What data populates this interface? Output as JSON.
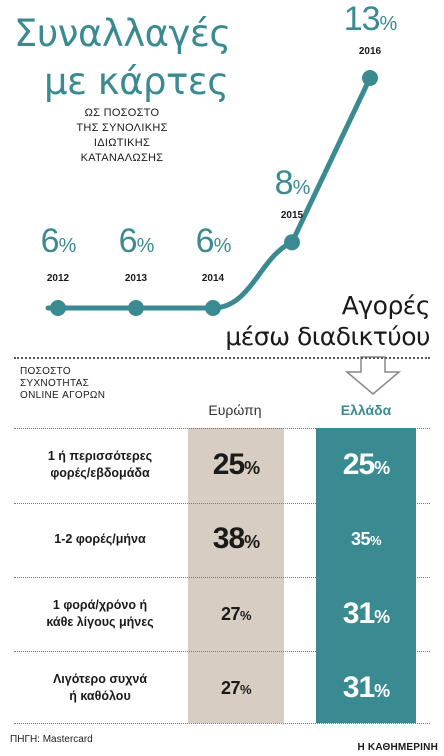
{
  "title": {
    "line1": "Συναλλαγές",
    "line2": "με κάρτες"
  },
  "subtitle": {
    "line1": "ΩΣ ΠΟΣΟΣΤΟ",
    "line2": "ΤΗΣ ΣΥΝΟΛΙΚΗΣ",
    "line3": "ΙΔΙΩΤΙΚΗΣ",
    "line4": "ΚΑΤΑΝΑΛΩΣΗΣ"
  },
  "chart_data": [
    {
      "type": "line",
      "title": "Συναλλαγές με κάρτες",
      "subtitle": "ΩΣ ΠΟΣΟΣΤΟ ΤΗΣ ΣΥΝΟΛΙΚΗΣ ΙΔΙΩΤΙΚΗΣ ΚΑΤΑΝΑΛΩΣΗΣ",
      "x": [
        "2012",
        "2013",
        "2014",
        "2015",
        "2016"
      ],
      "values": [
        6,
        6,
        6,
        8,
        13
      ],
      "unit": "%",
      "line_color": "#3a8a92",
      "grid": false,
      "legend": "none"
    },
    {
      "type": "table",
      "title": "Αγορές μέσω διαδικτύου",
      "row_header": "ΠΟΣΟΣΤΟ ΣΥΧΝΟΤΗΤΑΣ ONLINE ΑΓΟΡΩΝ",
      "columns": [
        "Ευρώπη",
        "Ελλάδα"
      ],
      "rows": [
        {
          "label": "1 ή περισσότερες φορές/εβδομάδα",
          "values": [
            25,
            25
          ]
        },
        {
          "label": "1-2 φορές/μήνα",
          "values": [
            38,
            35
          ]
        },
        {
          "label": "1 φορά/χρόνο ή κάθε λίγους μήνες",
          "values": [
            27,
            31
          ]
        },
        {
          "label": "Λιγότερο συχνά ή καθόλου",
          "values": [
            27,
            31
          ]
        }
      ],
      "unit": "%",
      "colors": {
        "europe": "#d8cdc2",
        "greece": "#3a8a92"
      }
    }
  ],
  "points": [
    {
      "year": "2012",
      "value": "6",
      "unit": "%"
    },
    {
      "year": "2013",
      "value": "6",
      "unit": "%"
    },
    {
      "year": "2014",
      "value": "6",
      "unit": "%"
    },
    {
      "year": "2015",
      "value": "8",
      "unit": "%"
    },
    {
      "year": "2016",
      "value": "13",
      "unit": "%"
    }
  ],
  "section2": {
    "title_line1": "Αγορές",
    "title_line2": "μέσω διαδικτύου",
    "row_header": {
      "line1": "ΠΟΣΟΣΤΟ",
      "line2": "ΣΥΧΝΟΤΗΤΑΣ",
      "line3": "ONLINE ΑΓΟΡΩΝ"
    },
    "col_europe": "Ευρώπη",
    "col_greece": "Ελλάδα",
    "rows": [
      {
        "label1": "1 ή περισσότερες",
        "label2": "φορές/εβδομάδα",
        "europe": "25",
        "greece": "25"
      },
      {
        "label1": "1-2 φορές/μήνα",
        "label2": "",
        "europe": "38",
        "greece": "35"
      },
      {
        "label1": "1 φορά/χρόνο ή",
        "label2": "κάθε λίγους μήνες",
        "europe": "27",
        "greece": "31"
      },
      {
        "label1": "Λιγότερο συχνά",
        "label2": "ή καθόλου",
        "europe": "27",
        "greece": "31"
      }
    ],
    "unit": "%"
  },
  "source": "ΠΗΓΗ: Mastercard",
  "brand": "Η ΚΑΘΗΜΕΡΙΝΗ"
}
